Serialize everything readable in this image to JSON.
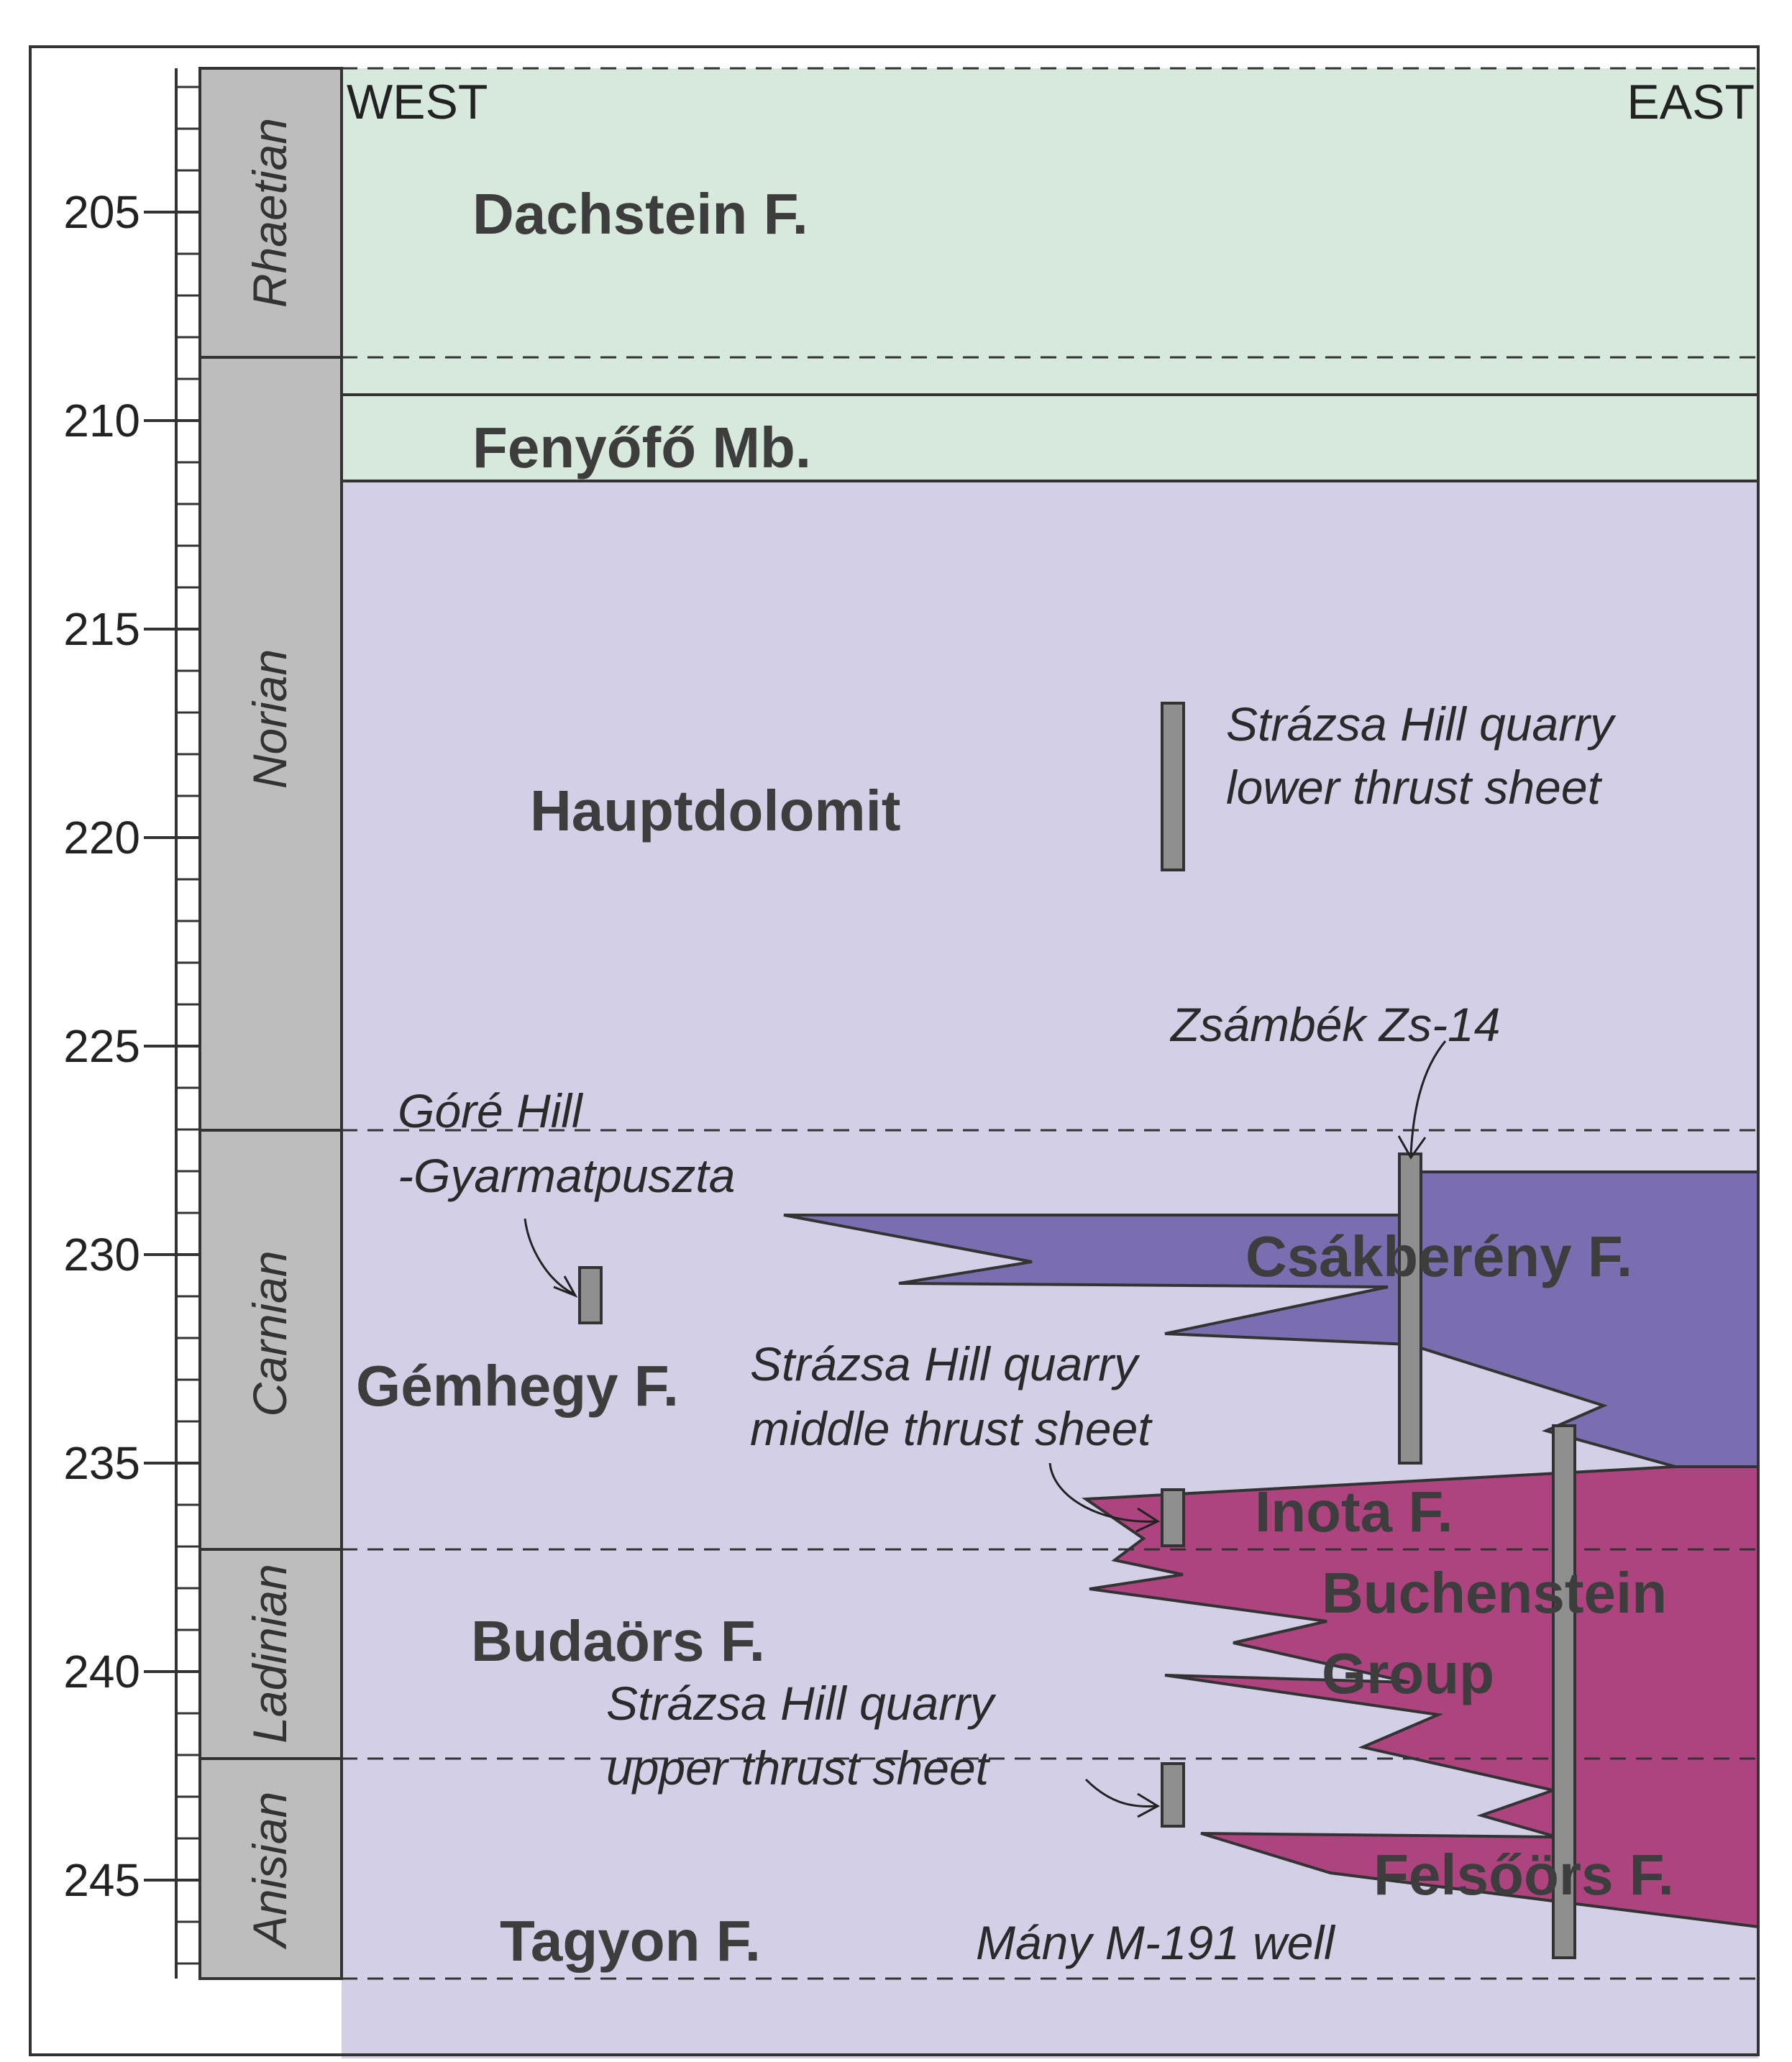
{
  "colors": {
    "dachstein": "#d7e9dc",
    "hauptdolomit": "#d3cfe6",
    "csakbereny": "#7a6db0",
    "buchenstein": "#ad437f",
    "stage_column": "#bdbdbd",
    "sample_bar": "#8f8f8f"
  },
  "axis": {
    "ticks": [
      "205",
      "210",
      "215",
      "220",
      "225",
      "230",
      "235",
      "240",
      "245"
    ]
  },
  "stages": [
    "Rhaetian",
    "Norian",
    "Carnian",
    "Ladinian",
    "Anisian"
  ],
  "directions": {
    "west": "WEST",
    "east": "EAST"
  },
  "units": {
    "dachstein": "Dachstein F.",
    "fenyofo": "Fenyőfő Mb.",
    "hauptdolomit": "Hauptdolomit",
    "csakbereny": "Csákberény F.",
    "gemhegy": "Gémhegy F.",
    "inota": "Inota F.",
    "buchenstein_1": "Buchenstein",
    "buchenstein_2": "Group",
    "budaors": "Budaörs F.",
    "felsoors": "Felsőörs F.",
    "tagyon": "Tagyon F."
  },
  "localities": {
    "strazsa_lower_1": "Strázsa Hill quarry",
    "strazsa_lower_2": "lower thrust sheet",
    "zsambek": "Zsámbék Zs-14",
    "gore_1": "Góré Hill",
    "gore_2": "-Gyarmatpuszta",
    "strazsa_middle_1": "Strázsa Hill quarry",
    "strazsa_middle_2": "middle thrust sheet",
    "strazsa_upper_1": "Strázsa Hill quarry",
    "strazsa_upper_2": "upper thrust sheet",
    "many": "Mány M-191 well"
  }
}
